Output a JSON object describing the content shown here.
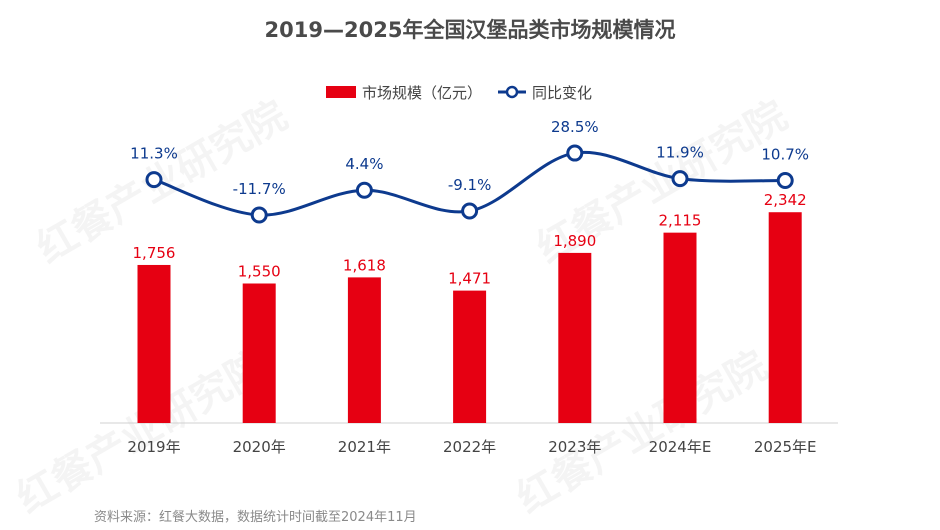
{
  "chart_data": {
    "type": "bar+line",
    "title": "2019—2025年全国汉堡品类市场规模情况",
    "categories": [
      "2019年",
      "2020年",
      "2021年",
      "2022年",
      "2023年",
      "2024年E",
      "2025年E"
    ],
    "series": [
      {
        "name": "市场规模（亿元）",
        "type": "bar",
        "color": "#e60012",
        "values": [
          1756,
          1550,
          1618,
          1471,
          1890,
          2115,
          2342
        ],
        "labels": [
          "1,756",
          "1,550",
          "1,618",
          "1,471",
          "1,890",
          "2,115",
          "2,342"
        ]
      },
      {
        "name": "同比变化",
        "type": "line",
        "color": "#0d3a8e",
        "values": [
          11.3,
          -11.7,
          4.4,
          -9.1,
          28.5,
          11.9,
          10.7
        ],
        "labels": [
          "11.3%",
          "-11.7%",
          "4.4%",
          "-9.1%",
          "28.5%",
          "11.9%",
          "10.7%"
        ]
      }
    ],
    "legend_position": "top-center",
    "grid": false
  },
  "source": "资料来源：红餐大数据，数据统计时间截至2024年11月",
  "watermark": "红餐产业研究院"
}
